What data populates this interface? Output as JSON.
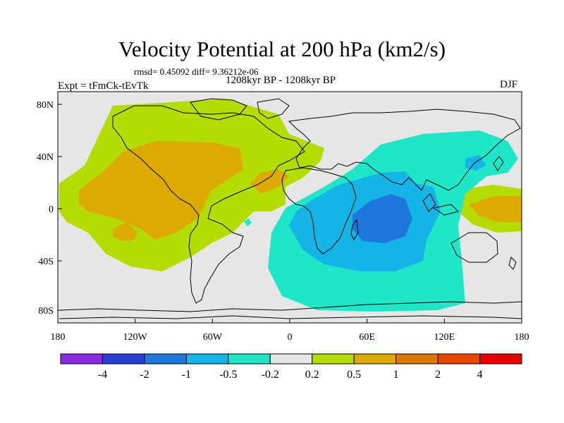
{
  "title": "Velocity Potential at 200 hPa (km2/s)",
  "stats": "rmsd= 0.45092 diff= 9.36212e-06",
  "left_label": "Expt = tFmCk-tEvTk",
  "center_label": "1208kyr BP - 1208kyr BP",
  "right_label": "DJF",
  "lon_labels": [
    "180",
    "120W",
    "60W",
    "0",
    "60E",
    "120E",
    "180"
  ],
  "lat_labels": [
    "80N",
    "40N",
    "0",
    "40S",
    "80S"
  ],
  "colorbar": {
    "boundaries": [
      "-4",
      "-2",
      "-1",
      "-0.5",
      "-0.2",
      "0.2",
      "0.5",
      "1",
      "2",
      "4"
    ],
    "colors": [
      "#8a2be2",
      "#2a3fd8",
      "#1e78dc",
      "#14b4e6",
      "#1ee6c8",
      "#e6e6e6",
      "#b4dc00",
      "#dcaa00",
      "#dc7800",
      "#e64600",
      "#e60000"
    ]
  },
  "colors": {
    "land_background": "#e6e6e6",
    "positive_light": "#b4dc00",
    "positive_mid": "#dcaa00",
    "negative_light": "#1ee6c8",
    "negative_mid": "#14b4e6",
    "negative_strong": "#1e78dc"
  }
}
